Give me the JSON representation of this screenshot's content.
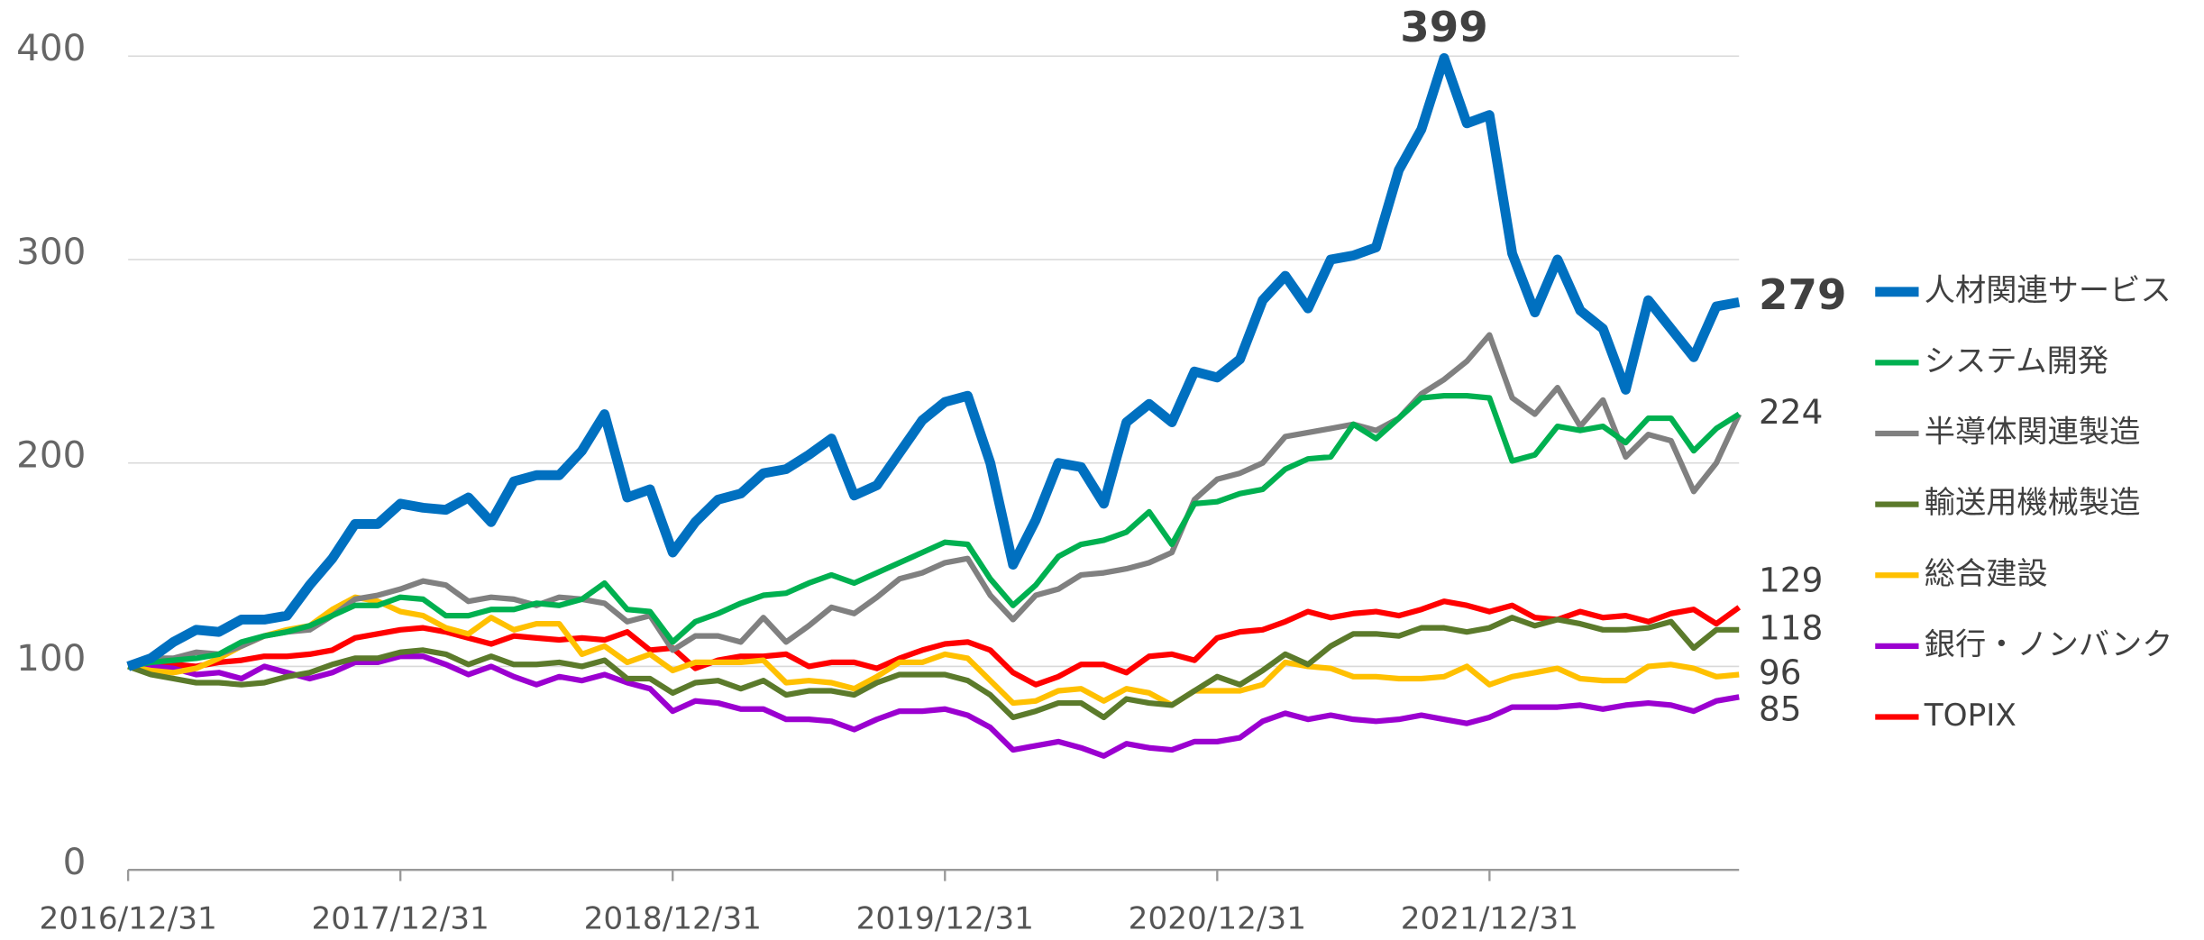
{
  "chart_data": {
    "type": "line",
    "categories": [
      "2016/12/31",
      null,
      null,
      null,
      null,
      null,
      null,
      null,
      null,
      null,
      null,
      null,
      "2017/12/31",
      null,
      null,
      null,
      null,
      null,
      null,
      null,
      null,
      null,
      null,
      null,
      "2018/12/31",
      null,
      null,
      null,
      null,
      null,
      null,
      null,
      null,
      null,
      null,
      null,
      "2019/12/31",
      null,
      null,
      null,
      null,
      null,
      null,
      null,
      null,
      null,
      null,
      null,
      "2020/12/31",
      null,
      null,
      null,
      null,
      null,
      null,
      null,
      null,
      null,
      null,
      null,
      "2021/12/31",
      null,
      null,
      null,
      null,
      null,
      null,
      null,
      null,
      null,
      null,
      null
    ],
    "ylim": [
      0,
      400
    ],
    "yticks": [
      0,
      100,
      200,
      300,
      400
    ],
    "grid": true,
    "series": [
      {
        "name": "人材関連サービス",
        "color": "#0070c0",
        "values": [
          100,
          104,
          112,
          118,
          117,
          123,
          123,
          125,
          140,
          153,
          170,
          170,
          180,
          178,
          177,
          183,
          171,
          191,
          194,
          194,
          206,
          224,
          183,
          187,
          156,
          171,
          182,
          185,
          195,
          197,
          204,
          212,
          184,
          189,
          205,
          221,
          230,
          233,
          200,
          150,
          172,
          200,
          198,
          180,
          220,
          229,
          220,
          245,
          242,
          251,
          280,
          292,
          276,
          300,
          302,
          306,
          344,
          364,
          399,
          367,
          371,
          303,
          274,
          300,
          275,
          266,
          236,
          280,
          266,
          252,
          277,
          279
        ]
      },
      {
        "name": "システム開発",
        "color": "#00b050",
        "values": [
          100,
          102,
          103,
          104,
          106,
          112,
          115,
          117,
          120,
          125,
          130,
          130,
          134,
          133,
          125,
          125,
          128,
          128,
          131,
          130,
          133,
          141,
          128,
          127,
          112,
          122,
          126,
          131,
          135,
          136,
          141,
          145,
          141,
          146,
          151,
          156,
          161,
          160,
          143,
          130,
          140,
          154,
          160,
          162,
          166,
          176,
          160,
          180,
          181,
          185,
          187,
          197,
          202,
          203,
          219,
          212,
          222,
          232,
          233,
          233,
          232,
          201,
          204,
          218,
          216,
          218,
          210,
          222,
          222,
          206,
          217,
          224
        ]
      },
      {
        "name": "半導体関連製造",
        "color": "#808080",
        "values": [
          100,
          104,
          104,
          107,
          106,
          110,
          115,
          117,
          118,
          125,
          133,
          135,
          138,
          142,
          140,
          132,
          134,
          133,
          130,
          134,
          133,
          131,
          122,
          125,
          108,
          115,
          115,
          112,
          124,
          112,
          120,
          129,
          126,
          134,
          143,
          146,
          151,
          153,
          135,
          123,
          135,
          138,
          145,
          146,
          148,
          151,
          156,
          182,
          192,
          195,
          200,
          213,
          215,
          217,
          219,
          216,
          222,
          234,
          241,
          250,
          263,
          232,
          224,
          237,
          218,
          231,
          203,
          214,
          211,
          186,
          200,
          224
        ]
      },
      {
        "name": "輸送用機械製造",
        "color": "#5b7a2b",
        "values": [
          100,
          96,
          94,
          92,
          92,
          91,
          92,
          95,
          97,
          101,
          104,
          104,
          107,
          108,
          106,
          101,
          105,
          101,
          101,
          102,
          100,
          103,
          94,
          94,
          87,
          92,
          93,
          89,
          93,
          86,
          88,
          88,
          86,
          92,
          96,
          96,
          96,
          93,
          86,
          75,
          78,
          82,
          82,
          75,
          84,
          82,
          81,
          88,
          95,
          91,
          98,
          106,
          101,
          110,
          116,
          116,
          115,
          119,
          119,
          117,
          119,
          124,
          120,
          123,
          121,
          118,
          118,
          119,
          122,
          109,
          118,
          118
        ]
      },
      {
        "name": "総合建設",
        "color": "#ffc000",
        "values": [
          100,
          98,
          97,
          99,
          104,
          110,
          115,
          118,
          120,
          128,
          134,
          132,
          127,
          125,
          119,
          116,
          124,
          118,
          121,
          121,
          106,
          110,
          102,
          106,
          98,
          102,
          102,
          102,
          103,
          92,
          93,
          92,
          89,
          95,
          102,
          102,
          106,
          104,
          93,
          82,
          83,
          88,
          89,
          83,
          89,
          87,
          81,
          88,
          88,
          88,
          91,
          102,
          100,
          99,
          95,
          95,
          94,
          94,
          95,
          100,
          91,
          95,
          97,
          99,
          94,
          93,
          93,
          100,
          101,
          99,
          95,
          96
        ]
      },
      {
        "name": "銀行・ノンバンク",
        "color": "#9b00d0",
        "values": [
          100,
          100,
          99,
          96,
          97,
          94,
          100,
          97,
          94,
          97,
          102,
          102,
          105,
          105,
          101,
          96,
          100,
          95,
          91,
          95,
          93,
          96,
          92,
          89,
          78,
          83,
          82,
          79,
          79,
          74,
          74,
          73,
          69,
          74,
          78,
          78,
          79,
          76,
          70,
          59,
          61,
          63,
          60,
          56,
          62,
          60,
          59,
          63,
          63,
          65,
          73,
          77,
          74,
          76,
          74,
          73,
          74,
          76,
          74,
          72,
          75,
          80,
          80,
          80,
          81,
          79,
          81,
          82,
          81,
          78,
          83,
          85
        ]
      },
      {
        "name": "TOPIX",
        "color": "#ff0000",
        "values": [
          100,
          100,
          101,
          100,
          102,
          103,
          105,
          105,
          106,
          108,
          114,
          116,
          118,
          119,
          117,
          114,
          111,
          115,
          114,
          113,
          114,
          113,
          117,
          108,
          109,
          99,
          103,
          105,
          105,
          106,
          100,
          102,
          102,
          99,
          104,
          108,
          111,
          112,
          108,
          97,
          91,
          95,
          101,
          101,
          97,
          105,
          106,
          103,
          114,
          117,
          118,
          122,
          127,
          124,
          126,
          127,
          125,
          128,
          132,
          130,
          127,
          130,
          124,
          123,
          127,
          124,
          125,
          122,
          126,
          128,
          121,
          129
        ]
      }
    ]
  }
}
